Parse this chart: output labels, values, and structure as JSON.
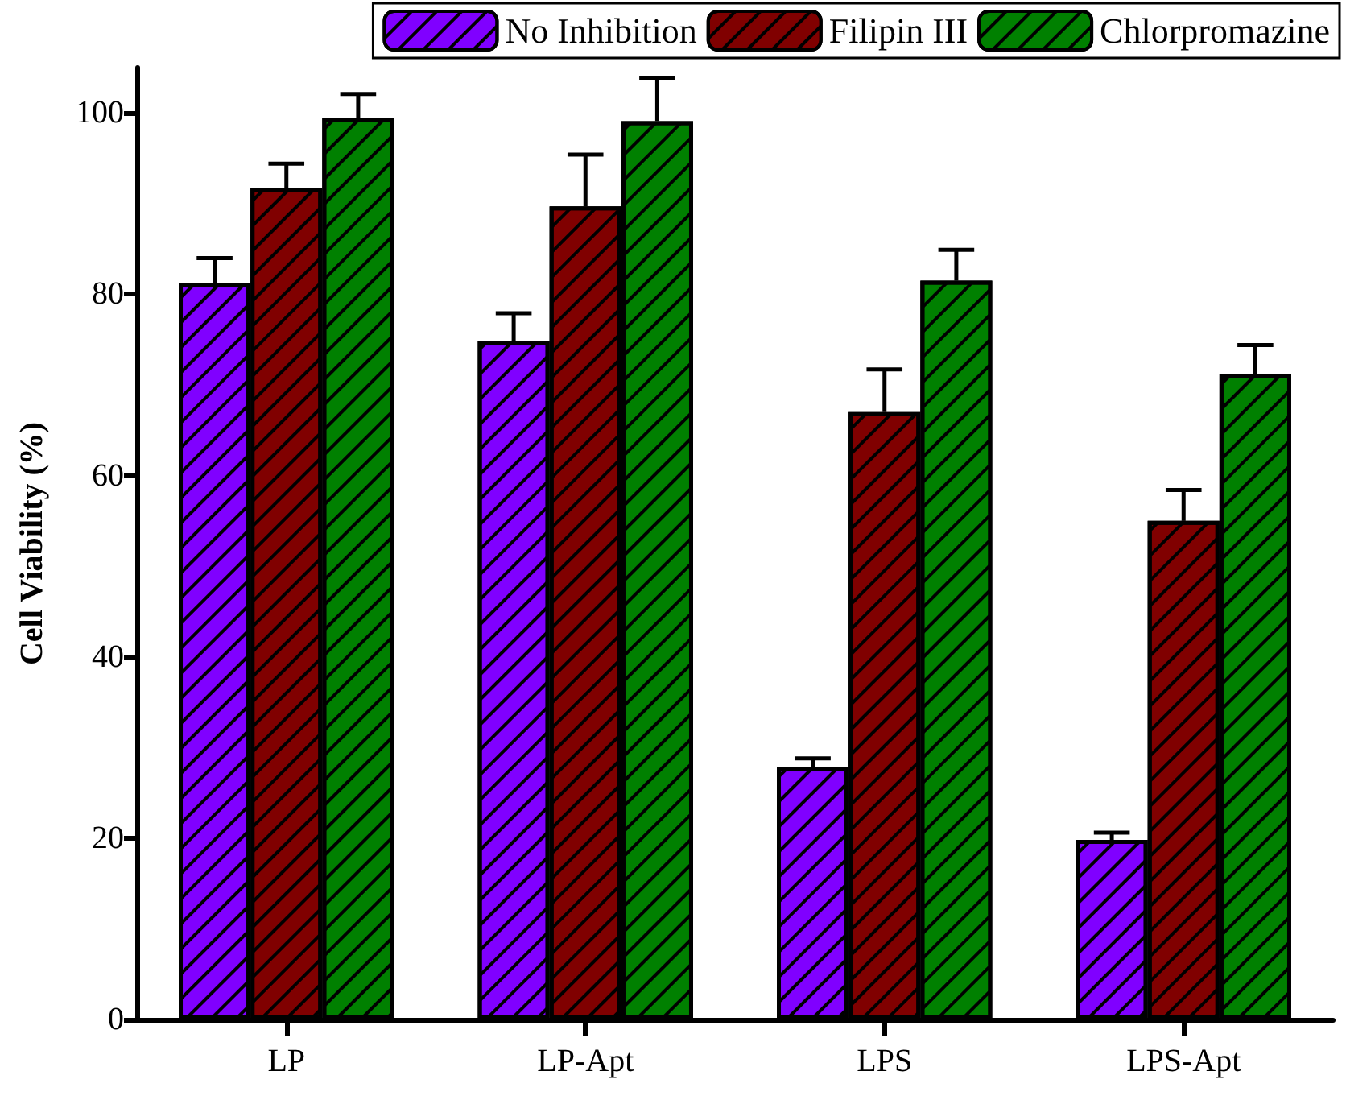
{
  "chart_data": {
    "type": "bar",
    "ylabel": "Cell Viability (%)",
    "categories": [
      "LP",
      "LP-Apt",
      "LPS",
      "LPS-Apt"
    ],
    "series": [
      {
        "name": "No Inhibition",
        "color": "#8000ff",
        "values": [
          81.2,
          74.8,
          27.8,
          19.8
        ],
        "errors": [
          [
            81.2,
            84.0
          ],
          [
            74.8,
            77.9
          ],
          [
            27.8,
            28.8
          ],
          [
            19.8,
            20.6
          ]
        ]
      },
      {
        "name": "Filipin III",
        "color": "#800000",
        "values": [
          91.7,
          89.7,
          67.0,
          55.0
        ],
        "errors": [
          [
            91.7,
            94.4
          ],
          [
            89.7,
            95.4
          ],
          [
            67.0,
            71.7
          ],
          [
            55.0,
            58.4
          ]
        ]
      },
      {
        "name": "Chlorpromazine",
        "color": "#008000",
        "values": [
          99.4,
          99.1,
          81.5,
          71.2
        ],
        "errors": [
          [
            99.4,
            102.1
          ],
          [
            99.1,
            103.9
          ],
          [
            81.5,
            84.9
          ],
          [
            71.2,
            74.4
          ]
        ]
      }
    ],
    "ylim": [
      0,
      105
    ],
    "yticks": [
      0,
      20,
      40,
      60,
      80,
      100
    ],
    "grid": false,
    "legend": "top"
  }
}
